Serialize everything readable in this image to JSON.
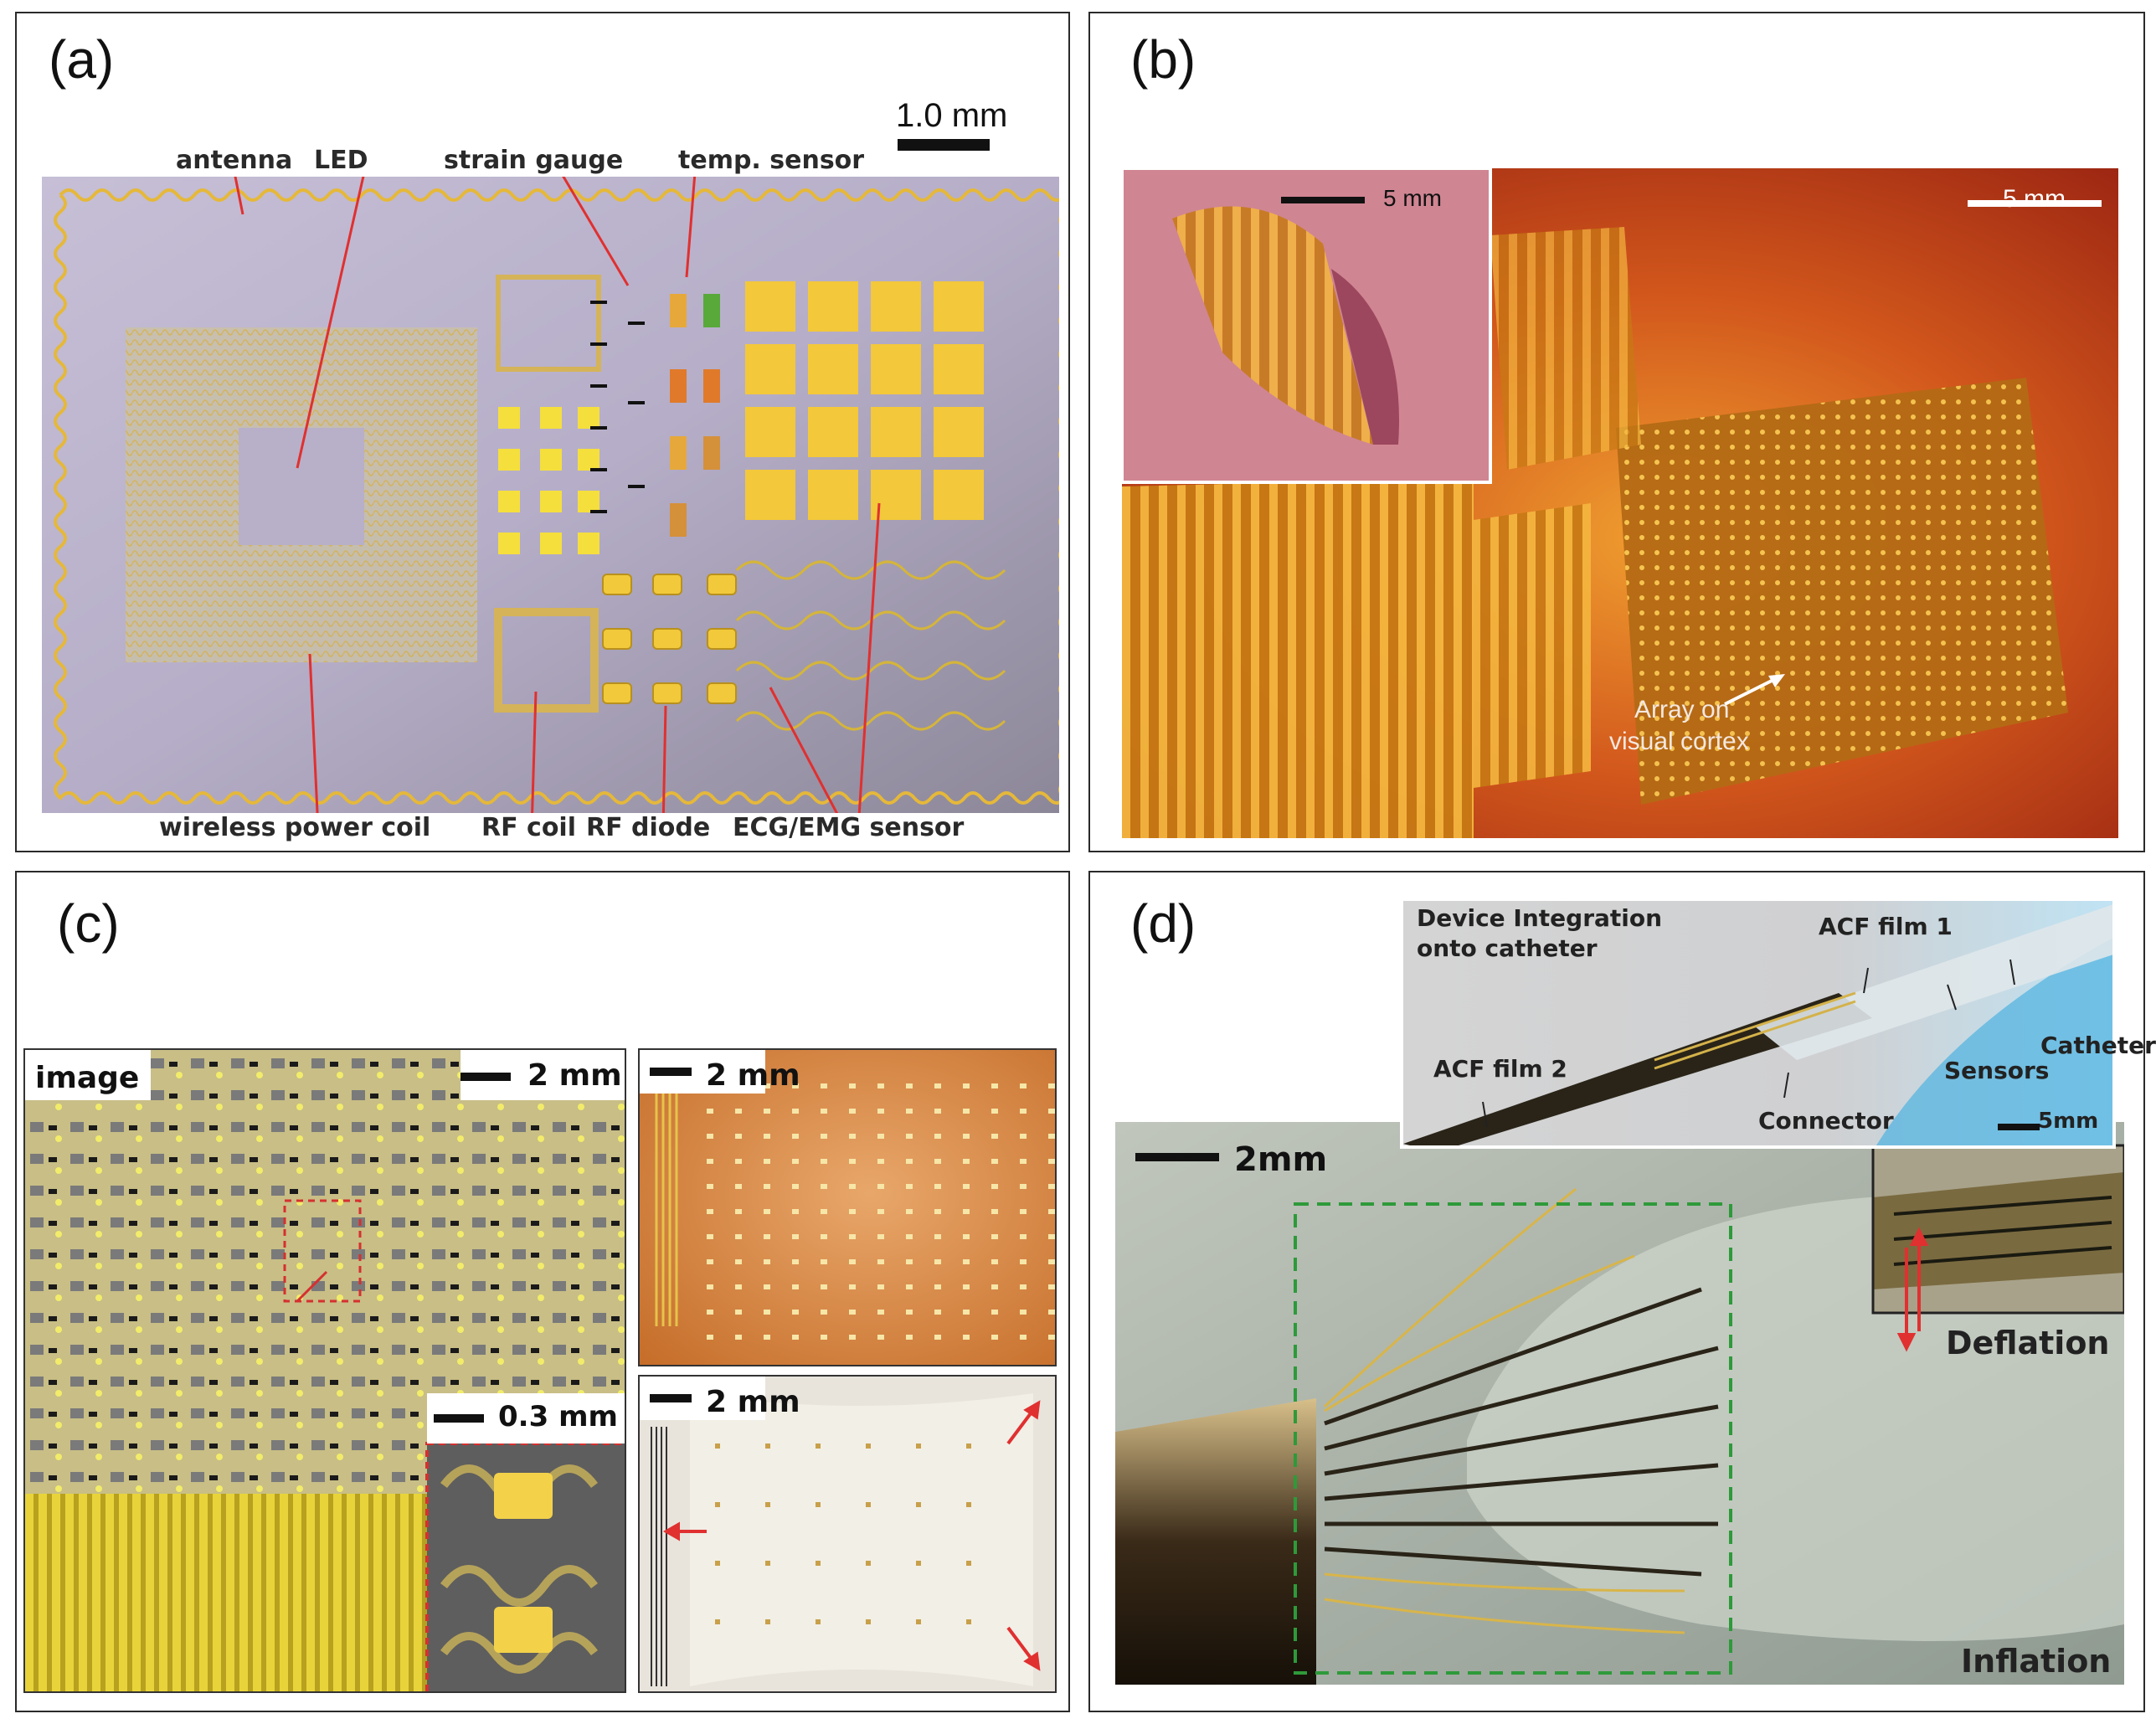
{
  "panels": {
    "a": {
      "label": "(a)",
      "scale_bar": "1.0 mm",
      "labels": {
        "antenna": "antenna",
        "led": "LED",
        "strain_gauge": "strain gauge",
        "temp_sensor": "temp. sensor",
        "wireless_power_coil": "wireless power coil",
        "rf_coil": "RF coil",
        "rf_diode": "RF diode",
        "ecg_emg_sensor": "ECG/EMG sensor"
      }
    },
    "b": {
      "label": "(b)",
      "scale_bar_main": "5 mm",
      "scale_bar_inset": "5 mm",
      "annotation_line1": "Array on",
      "annotation_line2": "visual cortex"
    },
    "c": {
      "label": "(c)",
      "image_tag": "image",
      "scale_bar_left": "2 mm",
      "scale_bar_inset": "0.3 mm",
      "scale_bar_top_right": "2 mm",
      "scale_bar_bottom_right": "2 mm"
    },
    "d": {
      "label": "(d)",
      "inset_title_line1": "Device Integration",
      "inset_title_line2": "onto catheter",
      "acf_film_1": "ACF film 1",
      "acf_film_2": "ACF film 2",
      "connector": "Connector",
      "sensors": "Sensors",
      "catheter": "Catheter",
      "scale_bar_inset": "5mm",
      "scale_bar_main": "2mm",
      "deflation": "Deflation",
      "inflation": "Inflation"
    }
  },
  "colors": {
    "gold": "#e0b23a",
    "yellow_pad": "#f6dc3a",
    "red_arrow": "#e03030",
    "tissue_red": "#b52416",
    "amber": "#d58a1c",
    "green_dash": "#2e9a3a"
  }
}
